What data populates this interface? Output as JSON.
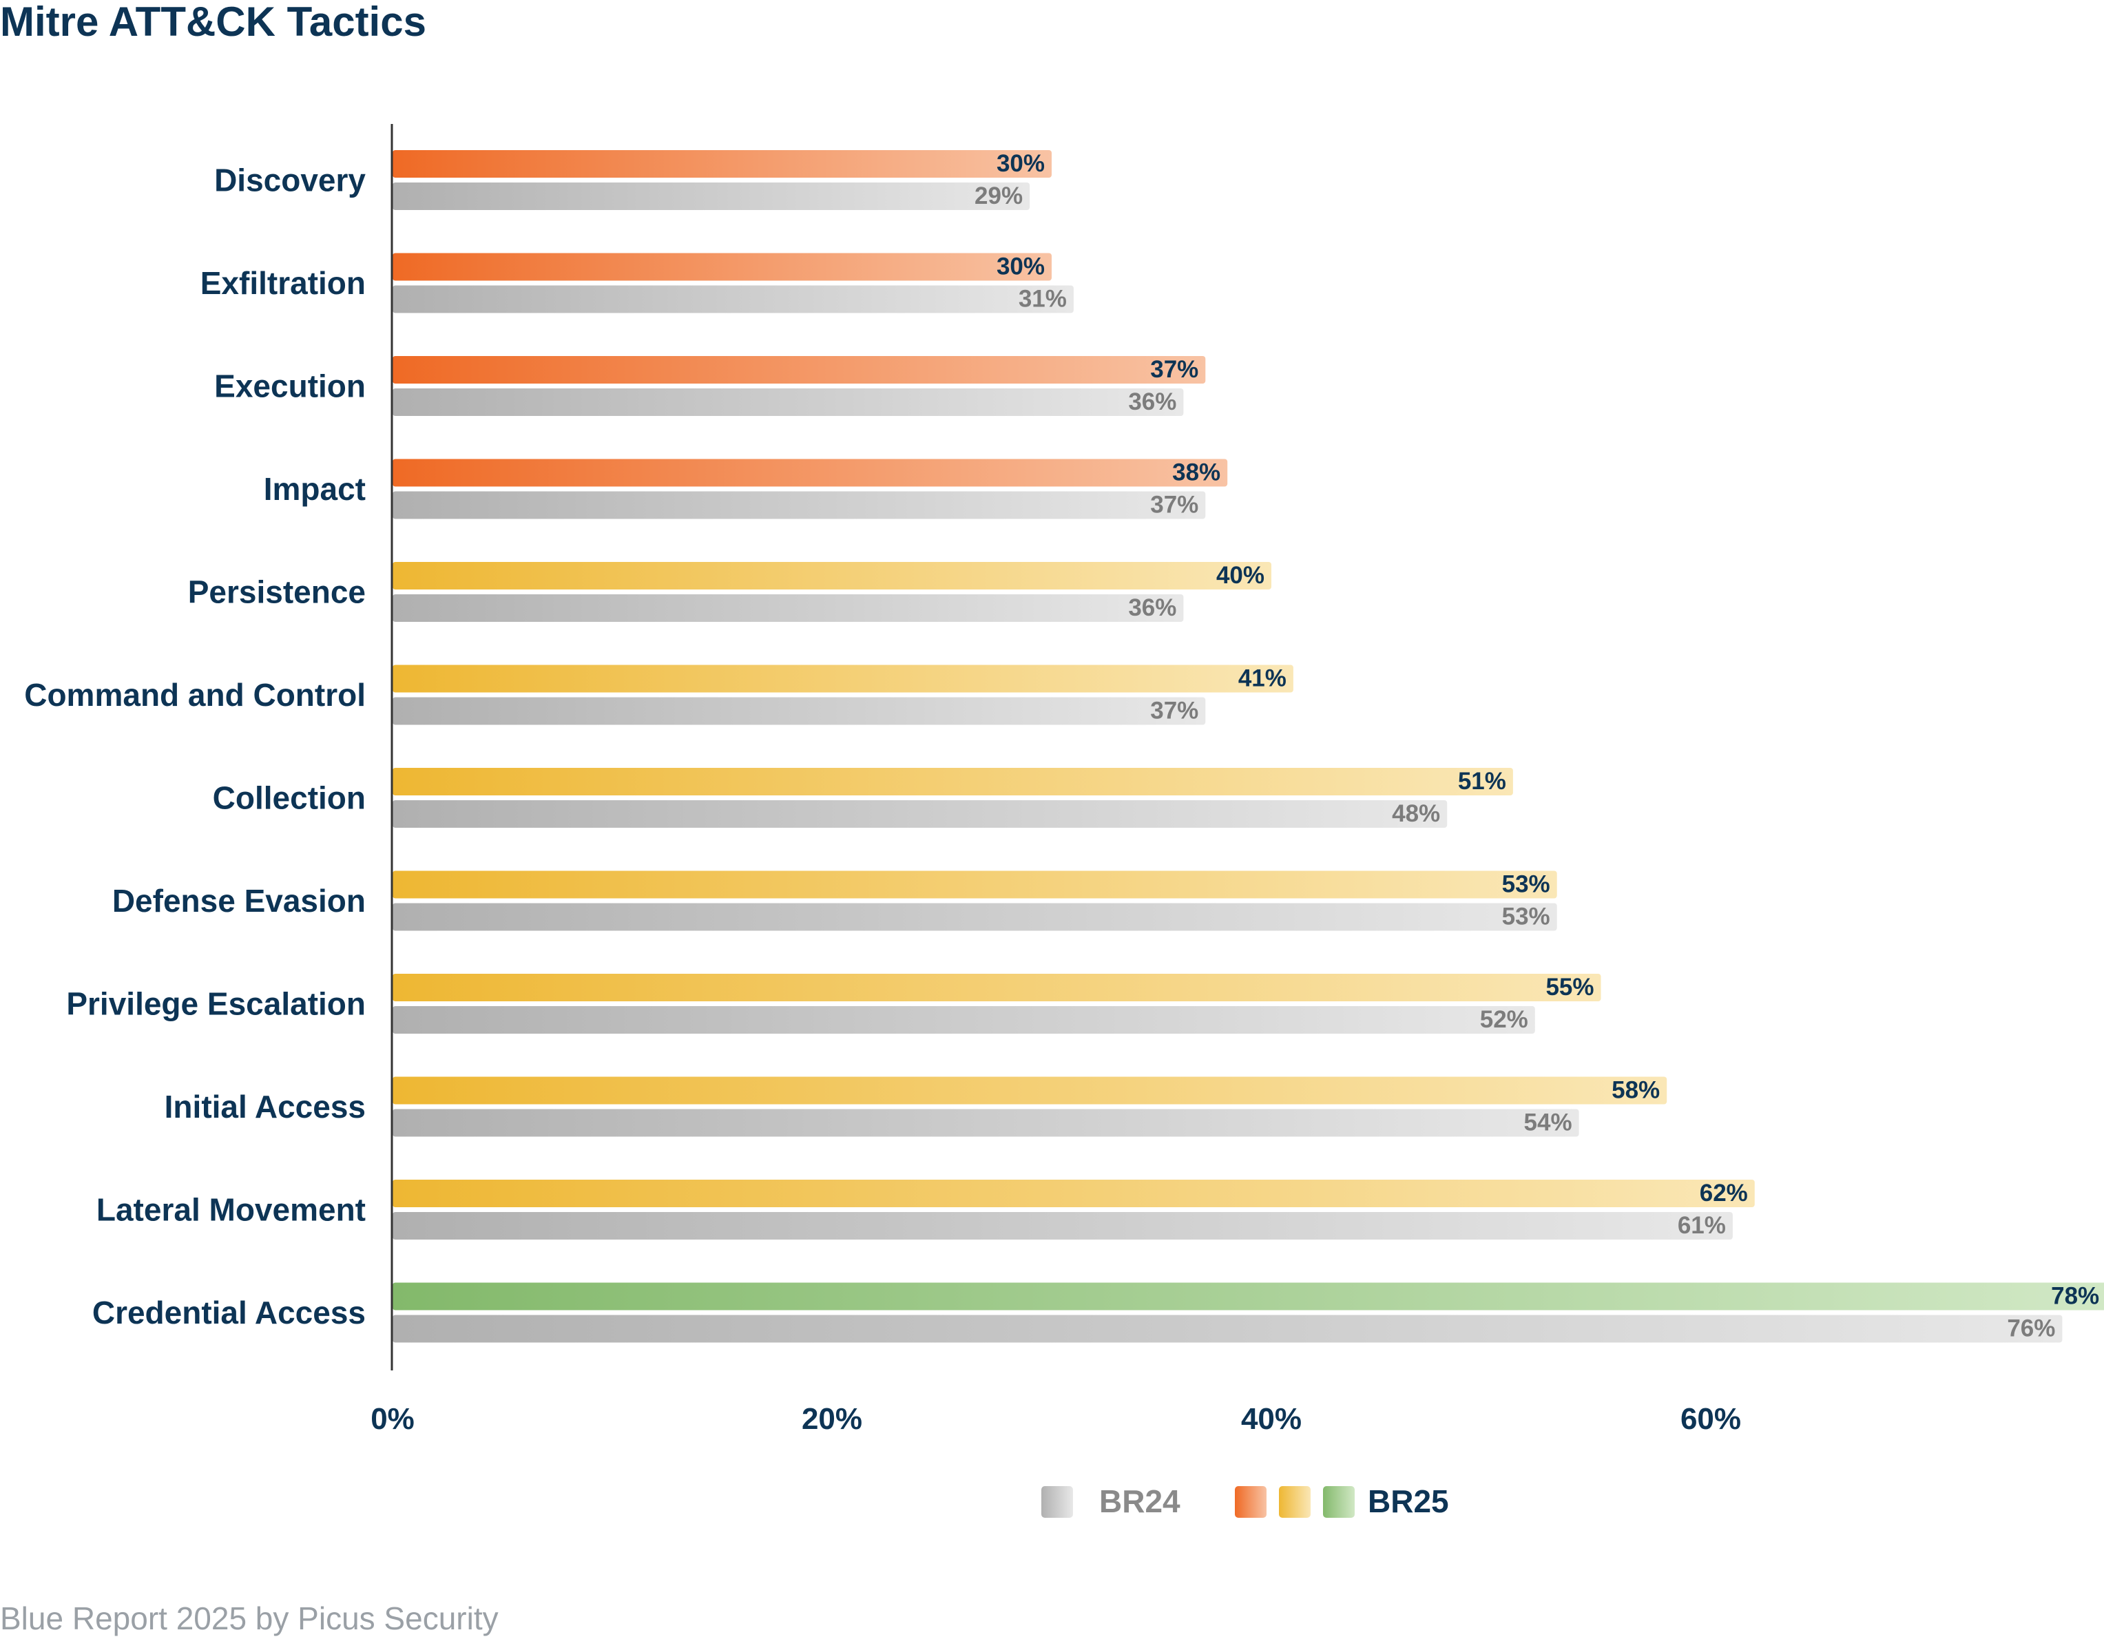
{
  "colors": {
    "title": "#0d3455",
    "axis": "#333333",
    "br24": [
      "#b0b0b0",
      "#e8e8e8"
    ],
    "orange": [
      "#ef6a25",
      "#f8c3a4"
    ],
    "yellow": [
      "#eeb733",
      "#fae7b6"
    ],
    "green": [
      "#83b96b",
      "#d1e8c5"
    ],
    "footer": "#9aa0a6"
  },
  "footer": "Blue Report 2025 by Picus Security",
  "chart_data": {
    "type": "bar",
    "orientation": "horizontal",
    "title": "Mitre ATT&CK Tactics",
    "xlabel": "",
    "ylabel": "",
    "xlim": [
      0,
      78
    ],
    "xticks": [
      0,
      20,
      40,
      60
    ],
    "xtick_labels": [
      "0%",
      "20%",
      "40%",
      "60%"
    ],
    "categories": [
      "Discovery",
      "Exfiltration",
      "Execution",
      "Impact",
      "Persistence",
      "Command and Control",
      "Collection",
      "Defense Evasion",
      "Privilege Escalation",
      "Initial Access",
      "Lateral Movement",
      "Credential Access"
    ],
    "series": [
      {
        "name": "BR25",
        "values": [
          30,
          30,
          37,
          38,
          40,
          41,
          51,
          53,
          55,
          58,
          62,
          78
        ],
        "labels": [
          "30%",
          "30%",
          "37%",
          "38%",
          "40%",
          "41%",
          "51%",
          "53%",
          "55%",
          "58%",
          "62%",
          "78%"
        ],
        "color_groups": [
          "orange",
          "orange",
          "orange",
          "orange",
          "yellow",
          "yellow",
          "yellow",
          "yellow",
          "yellow",
          "yellow",
          "yellow",
          "green"
        ]
      },
      {
        "name": "BR24",
        "values": [
          29,
          31,
          36,
          37,
          36,
          37,
          48,
          53,
          52,
          54,
          61,
          76
        ],
        "labels": [
          "29%",
          "31%",
          "36%",
          "37%",
          "36%",
          "37%",
          "48%",
          "53%",
          "52%",
          "54%",
          "61%",
          "76%"
        ]
      }
    ],
    "legend": [
      {
        "label": "BR24",
        "swatches": [
          "br24"
        ]
      },
      {
        "label": "BR25",
        "swatches": [
          "orange",
          "yellow",
          "green"
        ]
      }
    ],
    "legend_position": "bottom-center",
    "grid": false
  }
}
